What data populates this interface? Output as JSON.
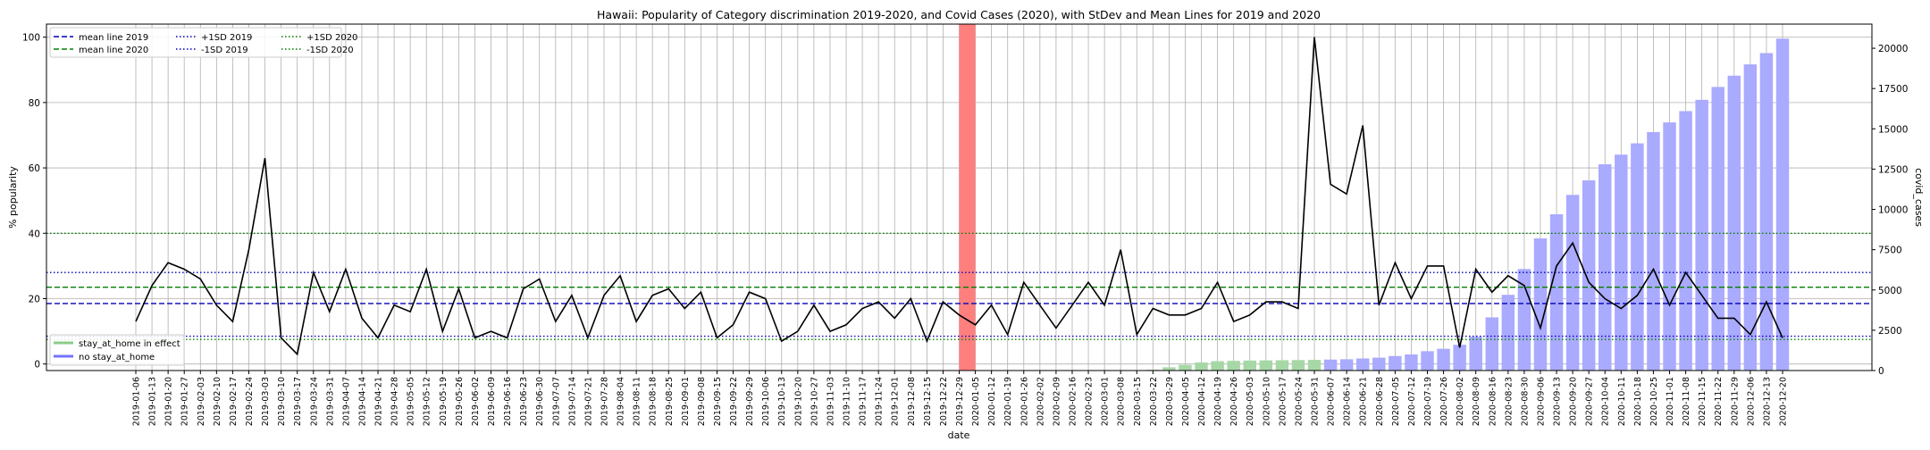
{
  "chart_data": {
    "type": "line",
    "title": "Hawaii: Popularity of Category discrimination 2019-2020, and Covid Cases (2020), with StDev and Mean Lines for 2019 and 2020",
    "xlabel": "date",
    "ylabel": "% popularity",
    "y2label": "covid_cases",
    "ylim": [
      -2,
      104
    ],
    "y2lim": [
      0,
      21500
    ],
    "yticks": [
      0,
      20,
      40,
      60,
      80,
      100
    ],
    "y2ticks": [
      0,
      2500,
      5000,
      7500,
      10000,
      12500,
      15000,
      17500,
      20000
    ],
    "grid": true,
    "legend_top_position": "top-left",
    "legend_bottom_position": "bottom-left",
    "x": [
      "2019-01-06",
      "2019-01-13",
      "2019-01-20",
      "2019-01-27",
      "2019-02-03",
      "2019-02-10",
      "2019-02-17",
      "2019-02-24",
      "2019-03-03",
      "2019-03-10",
      "2019-03-17",
      "2019-03-24",
      "2019-03-31",
      "2019-04-07",
      "2019-04-14",
      "2019-04-21",
      "2019-04-28",
      "2019-05-05",
      "2019-05-12",
      "2019-05-19",
      "2019-05-26",
      "2019-06-02",
      "2019-06-09",
      "2019-06-16",
      "2019-06-23",
      "2019-06-30",
      "2019-07-07",
      "2019-07-14",
      "2019-07-21",
      "2019-07-28",
      "2019-08-04",
      "2019-08-11",
      "2019-08-18",
      "2019-08-25",
      "2019-09-01",
      "2019-09-08",
      "2019-09-15",
      "2019-09-22",
      "2019-09-29",
      "2019-10-06",
      "2019-10-13",
      "2019-10-20",
      "2019-10-27",
      "2019-11-03",
      "2019-11-10",
      "2019-11-17",
      "2019-11-24",
      "2019-12-01",
      "2019-12-08",
      "2019-12-15",
      "2019-12-22",
      "2019-12-29",
      "2020-01-05",
      "2020-01-12",
      "2020-01-19",
      "2020-01-26",
      "2020-02-02",
      "2020-02-09",
      "2020-02-16",
      "2020-02-23",
      "2020-03-01",
      "2020-03-08",
      "2020-03-15",
      "2020-03-22",
      "2020-03-29",
      "2020-04-05",
      "2020-04-12",
      "2020-04-19",
      "2020-04-26",
      "2020-05-03",
      "2020-05-10",
      "2020-05-17",
      "2020-05-24",
      "2020-05-31",
      "2020-06-07",
      "2020-06-14",
      "2020-06-21",
      "2020-06-28",
      "2020-07-05",
      "2020-07-12",
      "2020-07-19",
      "2020-07-26",
      "2020-08-02",
      "2020-08-09",
      "2020-08-16",
      "2020-08-23",
      "2020-08-30",
      "2020-09-06",
      "2020-09-13",
      "2020-09-20",
      "2020-09-27",
      "2020-10-04",
      "2020-10-11",
      "2020-10-18",
      "2020-10-25",
      "2020-11-01",
      "2020-11-08",
      "2020-11-15",
      "2020-11-22",
      "2020-11-29",
      "2020-12-06",
      "2020-12-13",
      "2020-12-20"
    ],
    "popularity": [
      13,
      24,
      31,
      29,
      26,
      18,
      13,
      35,
      63,
      8,
      3,
      28,
      16,
      29,
      14,
      8,
      18,
      16,
      29,
      10,
      23,
      8,
      10,
      8,
      23,
      26,
      13,
      21,
      8,
      21,
      27,
      13,
      21,
      23,
      17,
      22,
      8,
      12,
      22,
      20,
      7,
      10,
      18,
      10,
      12,
      17,
      19,
      14,
      20,
      7,
      19,
      15,
      12,
      18,
      9,
      25,
      18,
      11,
      18,
      25,
      18,
      35,
      9,
      17,
      15,
      15,
      17,
      25,
      13,
      15,
      19,
      19,
      17,
      100,
      55,
      52,
      73,
      18,
      31,
      20,
      30,
      30,
      5,
      29,
      22,
      27,
      24,
      11,
      30,
      37,
      25,
      20,
      17,
      21,
      29,
      18,
      28,
      21,
      14,
      14,
      9,
      19,
      8
    ],
    "covid_cases": [
      0,
      0,
      0,
      0,
      0,
      0,
      0,
      0,
      0,
      0,
      0,
      0,
      0,
      0,
      0,
      0,
      0,
      0,
      0,
      0,
      0,
      0,
      0,
      0,
      0,
      0,
      0,
      0,
      0,
      0,
      0,
      0,
      0,
      0,
      0,
      0,
      0,
      0,
      0,
      0,
      0,
      0,
      0,
      0,
      0,
      0,
      0,
      0,
      0,
      0,
      0,
      0,
      0,
      0,
      0,
      0,
      0,
      0,
      0,
      0,
      0,
      0,
      0,
      50,
      200,
      350,
      500,
      580,
      600,
      620,
      630,
      640,
      650,
      660,
      680,
      700,
      750,
      800,
      900,
      1000,
      1200,
      1350,
      1600,
      2100,
      3300,
      4700,
      6300,
      8200,
      9700,
      10900,
      11800,
      12800,
      13400,
      14100,
      14800,
      15400,
      16100,
      16800,
      17600,
      18300,
      19000,
      19700,
      20600
    ],
    "stay_at_home_start": 63,
    "stay_at_home_end": 73,
    "highlight_x": 51.5,
    "lines": [
      {
        "name": "mean line 2019",
        "value": 18.5,
        "color": "#0000bb",
        "dash": "dashed"
      },
      {
        "name": "mean line 2020",
        "value": 23.5,
        "color": "#008000",
        "dash": "dashed"
      },
      {
        "name": "+1SD 2019",
        "value": 28,
        "color": "#0000bb",
        "dash": "dotted"
      },
      {
        "name": "-1SD 2019",
        "value": 8.5,
        "color": "#0000bb",
        "dash": "dotted"
      },
      {
        "name": "+1SD 2020",
        "value": 40,
        "color": "#008000",
        "dash": "dotted"
      },
      {
        "name": "-1SD 2020",
        "value": 7.5,
        "color": "#008000",
        "dash": "dotted"
      }
    ],
    "bar_legend": [
      {
        "name": "stay_at_home in effect",
        "color": "#2ca02c"
      },
      {
        "name": "no stay_at_home",
        "color": "#0000ff"
      }
    ],
    "colors": {
      "line": "#000000",
      "bar_no_stay": "#aaaaff",
      "bar_stay": "#a6d8a6",
      "highlight": "#ff7f7f",
      "grid": "#b0b0b0"
    }
  }
}
